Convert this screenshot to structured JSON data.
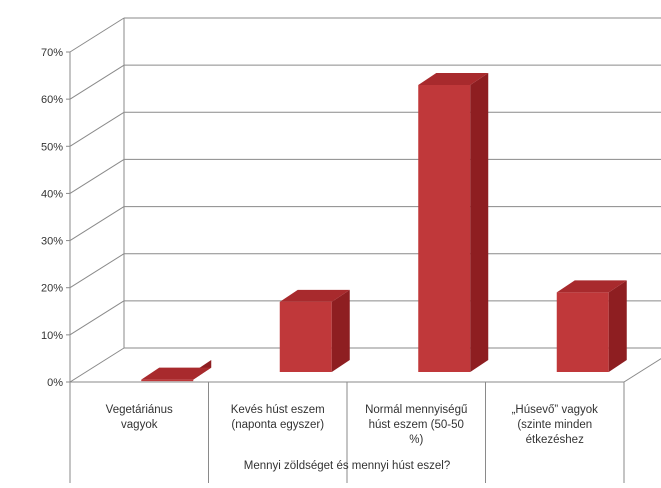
{
  "chart_data": {
    "type": "bar",
    "categories": [
      [
        "Vegetáriánus",
        "vagyok"
      ],
      [
        "Kevés húst eszem",
        "(naponta egyszer)"
      ],
      [
        "Normál mennyiségű",
        "húst eszem (50-50",
        "%)"
      ],
      [
        "„Húsevő” vagyok",
        "(szinte minden",
        "étkezéshez"
      ]
    ],
    "values": [
      0.5,
      17,
      63,
      19
    ],
    "ylim": [
      0,
      70
    ],
    "yticks": [
      "0%",
      "10%",
      "20%",
      "30%",
      "40%",
      "50%",
      "60%",
      "70%"
    ],
    "xlabel": "Mennyi zöldséget és mennyi húst eszel?",
    "ylabel": "",
    "title": "",
    "grid": true,
    "style": "3d-column",
    "colors": {
      "bar_front": "#c0383a",
      "bar_side": "#8e1e21",
      "bar_top": "#a82a2d",
      "grid": "#8a8a8a"
    }
  }
}
